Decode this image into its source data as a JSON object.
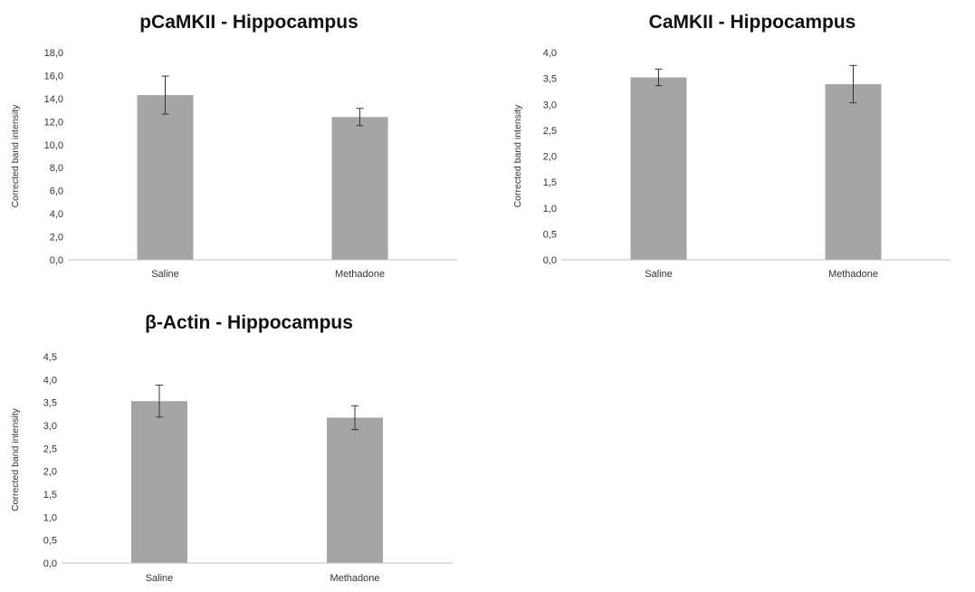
{
  "chart_data": [
    {
      "type": "bar",
      "title": "pCaMKII - Hippocampus",
      "ylabel": "Corrected band intensity",
      "xlabel": "",
      "categories": [
        "Saline",
        "Methadone"
      ],
      "values": [
        14.3,
        12.4
      ],
      "errors": [
        1.65,
        0.75
      ],
      "ylim": [
        0,
        18
      ],
      "yticks": [
        "0,0",
        "2,0",
        "4,0",
        "6,0",
        "8,0",
        "10,0",
        "12,0",
        "14,0",
        "16,0",
        "18,0"
      ],
      "bar_color": "#a5a5a5"
    },
    {
      "type": "bar",
      "title": "CaMKII - Hippocampus",
      "ylabel": "Corrected band intensity",
      "xlabel": "",
      "categories": [
        "Saline",
        "Methadone"
      ],
      "values": [
        3.52,
        3.39
      ],
      "errors": [
        0.16,
        0.36
      ],
      "ylim": [
        0,
        4
      ],
      "yticks": [
        "0,0",
        "0,5",
        "1,0",
        "1,5",
        "2,0",
        "2,5",
        "3,0",
        "3,5",
        "4,0"
      ],
      "bar_color": "#a5a5a5"
    },
    {
      "type": "bar",
      "title": "β-Actin - Hippocampus",
      "ylabel": "Corrected band intensity",
      "xlabel": "",
      "categories": [
        "Saline",
        "Methadone"
      ],
      "values": [
        3.53,
        3.17
      ],
      "errors": [
        0.35,
        0.26
      ],
      "ylim": [
        0,
        4.5
      ],
      "yticks": [
        "0,0",
        "0,5",
        "1,0",
        "1,5",
        "2,0",
        "2,5",
        "3,0",
        "3,5",
        "4,0",
        "4,5"
      ],
      "bar_color": "#a5a5a5"
    }
  ]
}
